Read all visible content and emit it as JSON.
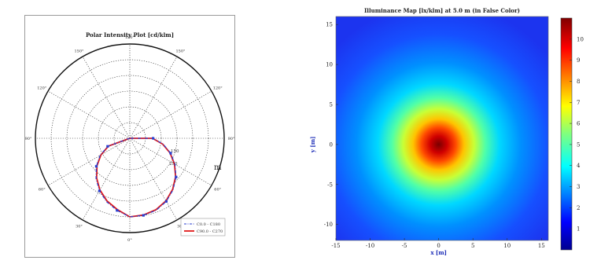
{
  "polar": {
    "title": "Polar Intensity Plot [cd/klm]",
    "angle_labels": [
      "0°",
      "30°",
      "60°",
      "90°",
      "120°",
      "150°",
      "180°",
      "150°",
      "120°",
      "90°",
      "60°",
      "30°"
    ],
    "radial_labels": [
      "150",
      "250"
    ],
    "radial_unit": "m",
    "legend": [
      {
        "label": "C0.0 - C180",
        "color": "#2a3fd0",
        "style": "dash-dot"
      },
      {
        "label": "C90.0 - C270",
        "color": "#e01818",
        "style": "solid"
      }
    ],
    "chart_data": {
      "type": "line",
      "polar": true,
      "rlim": [
        0,
        300
      ],
      "series": [
        {
          "color": "#2a3fd0",
          "angles_deg": [
            0,
            10,
            20,
            30,
            40,
            50,
            60,
            70,
            80,
            90,
            100,
            110,
            120,
            130,
            140,
            150,
            160,
            170,
            180,
            190,
            200,
            210,
            220,
            230,
            240,
            250,
            260,
            270,
            280,
            290,
            300,
            310,
            320,
            330,
            340,
            350
          ],
          "r": [
            250,
            249,
            244,
            232,
            214,
            192,
            166,
            138,
            108,
            74,
            0,
            0,
            0,
            0,
            0,
            0,
            0,
            0,
            0,
            0,
            0,
            0,
            0,
            0,
            0,
            0,
            0,
            0,
            0,
            75,
            109,
            139,
            167,
            193,
            215,
            233
          ]
        },
        {
          "color": "#e01818",
          "angles_deg": [
            0,
            10,
            20,
            30,
            40,
            50,
            60,
            70,
            80,
            90,
            100,
            110,
            120,
            130,
            140,
            150,
            160,
            170,
            180,
            190,
            200,
            210,
            220,
            230,
            240,
            250,
            260,
            270,
            280,
            290,
            300,
            310,
            320,
            330,
            340,
            350
          ],
          "r": [
            250,
            248,
            242,
            230,
            212,
            190,
            164,
            136,
            106,
            72,
            0,
            0,
            0,
            0,
            0,
            0,
            0,
            0,
            0,
            0,
            0,
            0,
            0,
            0,
            0,
            0,
            0,
            0,
            0,
            72,
            106,
            136,
            164,
            190,
            212,
            230
          ]
        }
      ]
    }
  },
  "map": {
    "title": "Illuminance Map [lx/klm] at 5.0 m (in False Color)",
    "xlabel": "x [m]",
    "ylabel": "y [m]",
    "x_ticks": [
      "-15",
      "-10",
      "-5",
      "0",
      "5",
      "10",
      "15"
    ],
    "y_ticks": [
      "15",
      "10",
      "5",
      "0",
      "-5",
      "-10"
    ],
    "colorbar_ticks": [
      "1",
      "2",
      "3",
      "4",
      "5",
      "6",
      "7",
      "8",
      "9",
      "10"
    ],
    "chart_data": {
      "type": "heatmap",
      "title": "Illuminance Map [lx/klm] at 5.0 m (in False Color)",
      "xlabel": "x [m]",
      "ylabel": "y [m]",
      "xlim": [
        -15,
        16
      ],
      "ylim": [
        -12,
        16
      ],
      "zlim": [
        0,
        11
      ],
      "peak": {
        "x": 0,
        "y": 0,
        "value": 10.8
      },
      "colormap": "jet"
    }
  }
}
